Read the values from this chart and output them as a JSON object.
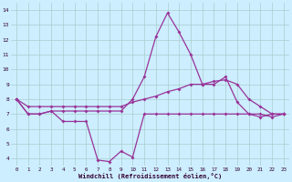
{
  "xlabel": "Windchill (Refroidissement éolien,°C)",
  "bg_color": "#cceeff",
  "line_color": "#993399",
  "grid_color": "#aacccc",
  "xlim": [
    -0.5,
    23.5
  ],
  "ylim": [
    3.5,
    14.5
  ],
  "yticks": [
    4,
    5,
    6,
    7,
    8,
    9,
    10,
    11,
    12,
    13,
    14
  ],
  "xticks": [
    0,
    1,
    2,
    3,
    4,
    5,
    6,
    7,
    8,
    9,
    10,
    11,
    12,
    13,
    14,
    15,
    16,
    17,
    18,
    19,
    20,
    21,
    22,
    23
  ],
  "line1": [
    8.0,
    7.0,
    7.0,
    7.2,
    6.5,
    6.5,
    6.5,
    3.9,
    3.8,
    4.5,
    4.1,
    7.0,
    7.0,
    7.0,
    7.0,
    7.0,
    7.0,
    7.0,
    7.0,
    7.0,
    7.0,
    7.0,
    6.8,
    7.0
  ],
  "line2": [
    8.0,
    7.0,
    7.0,
    7.2,
    7.2,
    7.2,
    7.2,
    7.2,
    7.2,
    7.2,
    8.0,
    9.5,
    12.2,
    13.8,
    12.5,
    11.0,
    9.0,
    9.0,
    9.5,
    7.8,
    7.0,
    6.8,
    7.0,
    7.0
  ],
  "line3": [
    8.0,
    7.5,
    7.5,
    7.5,
    7.5,
    7.5,
    7.5,
    7.5,
    7.5,
    7.5,
    7.8,
    8.0,
    8.2,
    8.5,
    8.7,
    9.0,
    9.0,
    9.2,
    9.3,
    9.0,
    8.0,
    7.5,
    7.0,
    7.0
  ]
}
